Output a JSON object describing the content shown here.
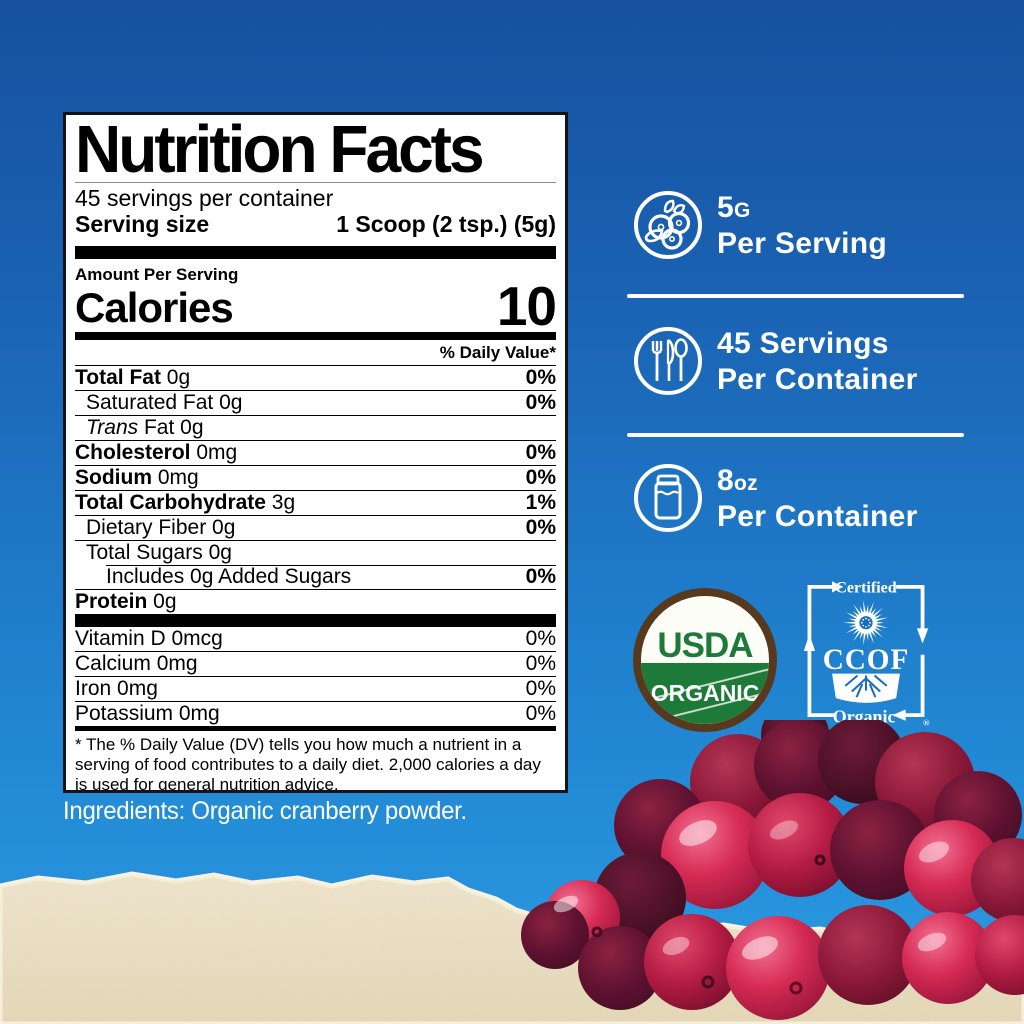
{
  "panel": {
    "title": "Nutrition Facts",
    "servings_per_container": "45 servings per container",
    "serving_size_label": "Serving size",
    "serving_size_value": "1 Scoop (2 tsp.) (5g)",
    "amount_per_serving": "Amount Per Serving",
    "calories_label": "Calories",
    "calories_value": "10",
    "daily_value_header": "% Daily Value*",
    "rows": [
      {
        "b": "Total Fat",
        "r": "0g",
        "dv": "0%",
        "ind": 0,
        "bold": true,
        "dvbold": true
      },
      {
        "b": "Saturated Fat",
        "r": "0g",
        "dv": "0%",
        "ind": 1,
        "bold": false,
        "dvbold": true
      },
      {
        "i": "Trans",
        "b": " Fat",
        "r": "0g",
        "dv": "",
        "ind": 1,
        "bold": false,
        "dvbold": true
      },
      {
        "b": "Cholesterol",
        "r": "0mg",
        "dv": "0%",
        "ind": 0,
        "bold": true,
        "dvbold": true
      },
      {
        "b": "Sodium",
        "r": "0mg",
        "dv": "0%",
        "ind": 0,
        "bold": true,
        "dvbold": true
      },
      {
        "b": "Total Carbohydrate",
        "r": "3g",
        "dv": "1%",
        "ind": 0,
        "bold": true,
        "dvbold": true
      },
      {
        "b": "Dietary Fiber",
        "r": "0g",
        "dv": "0%",
        "ind": 1,
        "bold": false,
        "dvbold": true
      },
      {
        "b": "Total Sugars",
        "r": "0g",
        "dv": "",
        "ind": 1,
        "bold": false,
        "dvbold": true
      },
      {
        "b": "Includes 0g Added Sugars",
        "r": "",
        "dv": "0%",
        "ind": 2,
        "bold": false,
        "dvbold": true,
        "indsep": true
      },
      {
        "b": "Protein",
        "r": "0g",
        "dv": "",
        "ind": 0,
        "bold": true,
        "dvbold": true
      }
    ],
    "micros": [
      {
        "b": "Vitamin D",
        "r": "0mcg",
        "dv": "0%",
        "ind": 0,
        "bold": false,
        "dvbold": false
      },
      {
        "b": "Calcium",
        "r": "0mg",
        "dv": "0%",
        "ind": 0,
        "bold": false,
        "dvbold": false
      },
      {
        "b": "Iron",
        "r": "0mg",
        "dv": "0%",
        "ind": 0,
        "bold": false,
        "dvbold": false
      },
      {
        "b": "Potassium",
        "r": "0mg",
        "dv": "0%",
        "ind": 0,
        "bold": false,
        "dvbold": false
      }
    ],
    "footnote": "* The % Daily Value (DV) tells you how much a nutrient in a serving of food contributes to a daily diet. 2,000 calories a day is used for general nutrition advice."
  },
  "ingredients": "Ingredients: Organic cranberry powder.",
  "badges": [
    {
      "icon": "cranberries-circle-icon",
      "line1_main": "5",
      "line1_unit": "G",
      "line2": "Per Serving"
    },
    {
      "icon": "cutlery-circle-icon",
      "line1_main": "45 Servings",
      "line1_unit": "",
      "line2": "Per Container"
    },
    {
      "icon": "jar-circle-icon",
      "line1_main": "8",
      "line1_unit": "oz",
      "line2": "Per Container"
    }
  ],
  "seals": {
    "usda": {
      "top": "USDA",
      "bottom": "ORGANIC"
    },
    "ccof": {
      "top": "Certified",
      "name": "CCOF",
      "bottom": "Organic",
      "registered": "®"
    }
  },
  "colors": {
    "background_top": "#17519F",
    "background_bottom": "#2A9CE3",
    "panel_bg": "#FFFFFF",
    "text_black": "#000000",
    "accent_white": "#FFFFFF",
    "usda_green": "#1E7A39",
    "usda_brown": "#573A1E",
    "paper": "#EADFC7",
    "cranberry_red": "#C2184A"
  }
}
